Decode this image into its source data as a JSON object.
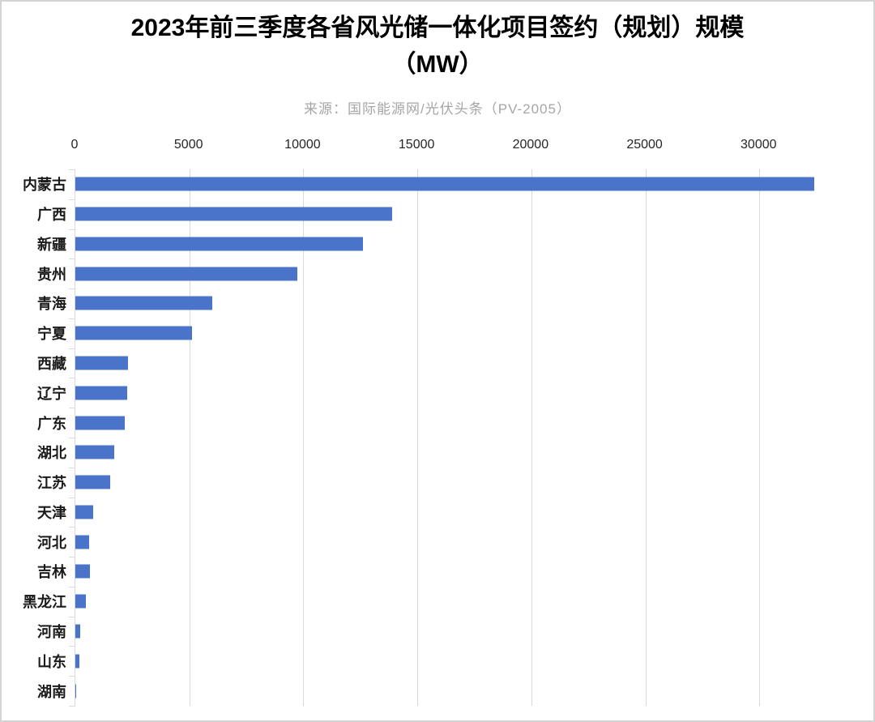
{
  "header": {
    "title_line1": "2023年前三季度各省风光储一体化项目签约（规划）规模",
    "title_line2": "（MW）",
    "source_note": "来源：国际能源网/光伏头条（PV-2005）"
  },
  "chart_data": {
    "type": "bar",
    "orientation": "horizontal",
    "title": "2023年前三季度各省风光储一体化项目签约（规划）规模（MW）",
    "subtitle": "来源：国际能源网/光伏头条（PV-2005）",
    "xlabel": "",
    "ylabel": "",
    "xlim": [
      0,
      35000
    ],
    "x_ticks": [
      0,
      5000,
      10000,
      15000,
      20000,
      25000,
      30000
    ],
    "grid": "vertical-only",
    "legend": "none",
    "bar_color": "#4a74c9",
    "gridline_color": "#d9d9d9",
    "categories": [
      "内蒙古",
      "广西",
      "新疆",
      "贵州",
      "青海",
      "宁夏",
      "西藏",
      "辽宁",
      "广东",
      "湖北",
      "江苏",
      "天津",
      "河北",
      "吉林",
      "黑龙江",
      "河南",
      "山东",
      "湖南"
    ],
    "values": [
      32400,
      13900,
      12600,
      9750,
      6000,
      5130,
      2320,
      2280,
      2170,
      1710,
      1530,
      780,
      610,
      640,
      460,
      210,
      180,
      10
    ]
  }
}
